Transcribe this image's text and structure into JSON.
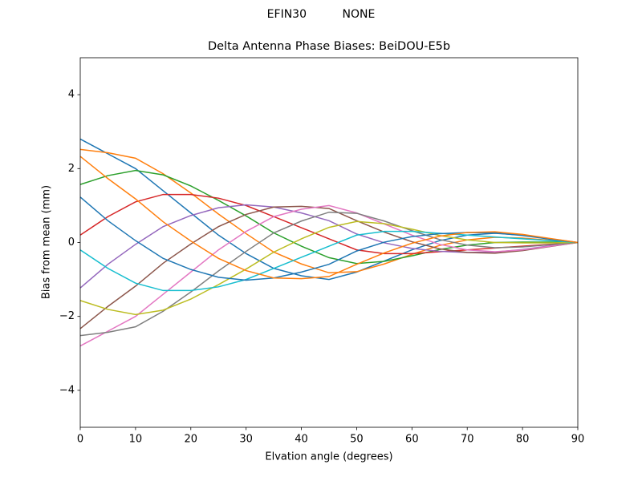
{
  "chart_data": {
    "type": "line",
    "suptitle": "EFIN30          NONE",
    "title": "Delta Antenna Phase Biases: BeiDOU-E5b",
    "xlabel": "Elvation angle (degrees)",
    "ylabel": "Bias from mean (mm)",
    "x": [
      0,
      5,
      10,
      15,
      20,
      25,
      30,
      35,
      40,
      45,
      50,
      55,
      60,
      65,
      70,
      75,
      80,
      85,
      90
    ],
    "xlim": [
      0,
      90
    ],
    "xticks": [
      0,
      10,
      20,
      30,
      40,
      50,
      60,
      70,
      80,
      90
    ],
    "ylim": [
      -5,
      5
    ],
    "yticks": [
      {
        "value": -4,
        "label": "−4"
      },
      {
        "value": -2,
        "label": "−2"
      },
      0,
      2,
      4
    ],
    "grid": false,
    "series": [
      {
        "color": "#1f77b4",
        "values": [
          2.8,
          2.4,
          2.0,
          1.4,
          0.8,
          0.2,
          -0.3,
          -0.7,
          -0.9,
          -1.0,
          -0.8,
          -0.5,
          -0.2,
          0.05,
          0.2,
          0.25,
          0.2,
          0.1,
          0
        ]
      },
      {
        "color": "#ff7f0e",
        "values": [
          2.52,
          2.43,
          2.28,
          1.86,
          1.34,
          0.77,
          0.24,
          -0.26,
          -0.58,
          -0.82,
          -0.79,
          -0.58,
          -0.32,
          -0.08,
          0.07,
          0.14,
          0.12,
          0.06,
          0
        ]
      },
      {
        "color": "#2ca02c",
        "values": [
          1.57,
          1.81,
          1.95,
          1.83,
          1.53,
          1.14,
          0.72,
          0.26,
          -0.1,
          -0.41,
          -0.57,
          -0.51,
          -0.36,
          -0.19,
          -0.07,
          0.0,
          0.01,
          0.01,
          0
        ]
      },
      {
        "color": "#d62728",
        "values": [
          0.2,
          0.7,
          1.1,
          1.3,
          1.3,
          1.2,
          1.0,
          0.7,
          0.4,
          0.1,
          -0.2,
          -0.3,
          -0.3,
          -0.25,
          -0.2,
          -0.15,
          -0.1,
          -0.05,
          0
        ]
      },
      {
        "color": "#9467bd",
        "values": [
          -1.23,
          -0.59,
          -0.05,
          0.43,
          0.73,
          0.94,
          1.02,
          0.96,
          0.8,
          0.59,
          0.23,
          -0.01,
          -0.16,
          -0.24,
          -0.27,
          -0.26,
          -0.19,
          -0.09,
          0
        ]
      },
      {
        "color": "#8c564b",
        "values": [
          -2.33,
          -1.73,
          -1.18,
          -0.56,
          -0.04,
          0.43,
          0.76,
          0.96,
          0.98,
          0.92,
          0.59,
          0.28,
          0.02,
          -0.17,
          -0.27,
          -0.29,
          -0.22,
          -0.11,
          0
        ]
      },
      {
        "color": "#e377c2",
        "values": [
          -2.8,
          -2.4,
          -2.0,
          -1.4,
          -0.8,
          -0.2,
          0.3,
          0.7,
          0.9,
          1.0,
          0.8,
          0.5,
          0.2,
          -0.05,
          -0.2,
          -0.25,
          -0.2,
          -0.1,
          0
        ]
      },
      {
        "color": "#7f7f7f",
        "values": [
          -2.52,
          -2.43,
          -2.28,
          -1.86,
          -1.34,
          -0.77,
          -0.24,
          0.26,
          0.58,
          0.82,
          0.79,
          0.58,
          0.32,
          0.08,
          -0.07,
          -0.14,
          -0.12,
          -0.06,
          0
        ]
      },
      {
        "color": "#bcbd22",
        "values": [
          -1.57,
          -1.81,
          -1.95,
          -1.83,
          -1.53,
          -1.14,
          -0.72,
          -0.26,
          0.1,
          0.41,
          0.57,
          0.51,
          0.36,
          0.19,
          0.07,
          0.0,
          -0.01,
          -0.01,
          0
        ]
      },
      {
        "color": "#17becf",
        "values": [
          -0.2,
          -0.7,
          -1.1,
          -1.3,
          -1.3,
          -1.2,
          -1.0,
          -0.7,
          -0.4,
          -0.1,
          0.2,
          0.3,
          0.3,
          0.25,
          0.2,
          0.15,
          0.1,
          0.05,
          0
        ]
      },
      {
        "color": "#1f77b4",
        "values": [
          1.23,
          0.59,
          0.05,
          -0.43,
          -0.73,
          -0.94,
          -1.02,
          -0.96,
          -0.8,
          -0.59,
          -0.23,
          0.01,
          0.16,
          0.24,
          0.27,
          0.26,
          0.19,
          0.09,
          0
        ]
      },
      {
        "color": "#ff7f0e",
        "values": [
          2.33,
          1.73,
          1.18,
          0.56,
          0.04,
          -0.43,
          -0.76,
          -0.96,
          -0.98,
          -0.92,
          -0.59,
          -0.28,
          -0.02,
          0.17,
          0.27,
          0.29,
          0.22,
          0.11,
          0
        ]
      }
    ]
  }
}
